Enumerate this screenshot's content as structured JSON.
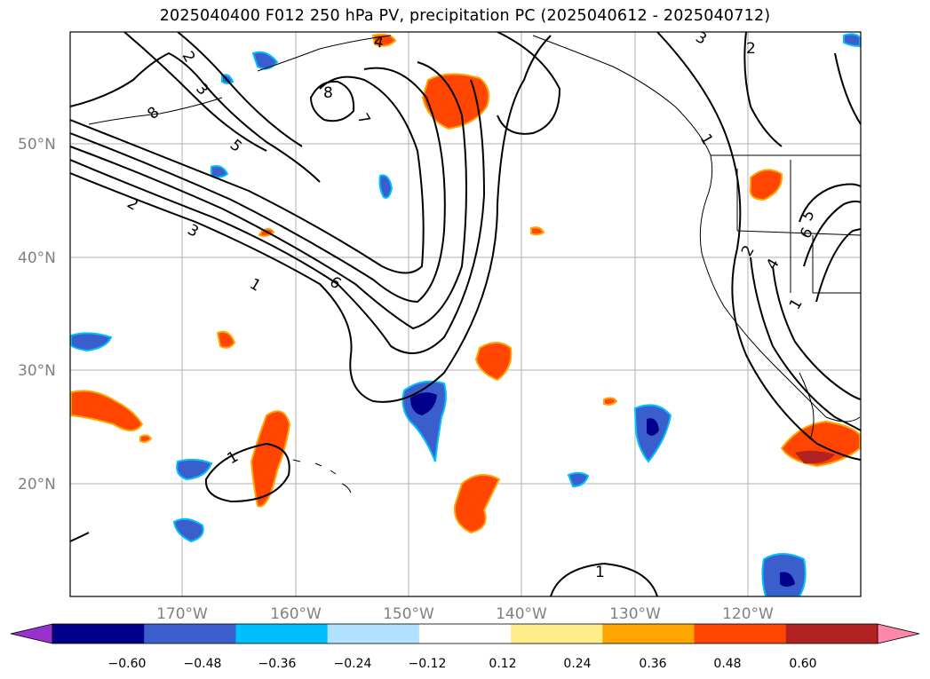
{
  "title": "2025040400 F012 250 hPa PV, precipitation PC (2025040612 - 2025040712)",
  "lat_labels": [
    "50°N",
    "40°N",
    "30°N",
    "20°N"
  ],
  "lon_labels": [
    "170°W",
    "160°W",
    "150°W",
    "140°W",
    "130°W",
    "120°W"
  ],
  "contour_labels": [
    "2",
    "3",
    "8",
    "7",
    "5",
    "8",
    "2",
    "3",
    "1",
    "6",
    "4",
    "1",
    "3",
    "2",
    "1",
    "2",
    "4",
    "6",
    "5",
    "1",
    "1"
  ],
  "colorbar": {
    "tick_labels": [
      "−0.60",
      "−0.48",
      "−0.36",
      "−0.24",
      "−0.12",
      "0.12",
      "0.24",
      "0.36",
      "0.48",
      "0.60"
    ],
    "colors": [
      "#9932cc",
      "#00008b",
      "#3a5fcd",
      "#00bfff",
      "#b0e2ff",
      "#ffffff",
      "#ffec8b",
      "#ffa500",
      "#ff4500",
      "#b22222",
      "#ff88aa"
    ]
  },
  "colors": {
    "negative_strong": "#00008b",
    "negative_mid": "#3a5fcd",
    "negative_weak": "#00bfff",
    "positive_weak": "#ffa500",
    "positive_mid": "#ff4500",
    "positive_strong": "#b22222",
    "contour": "#000000",
    "grid": "#b0b0b0"
  }
}
